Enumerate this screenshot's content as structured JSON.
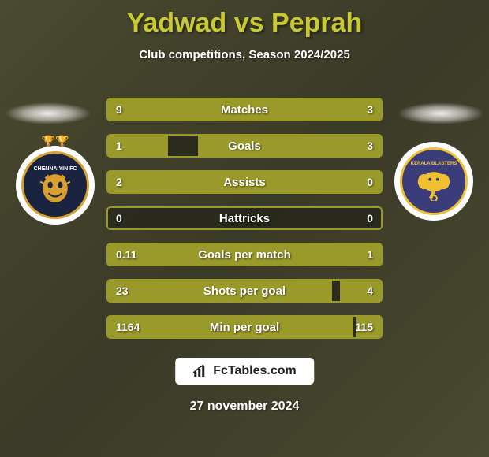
{
  "title": "Yadwad vs Peprah",
  "subtitle": "Club competitions, Season 2024/2025",
  "date": "27 november 2024",
  "footer_site": "FcTables.com",
  "colors": {
    "accent": "#c9c932",
    "bar": "#9a9a2a",
    "bg_dark": "#3a3a28",
    "text": "#ffffff"
  },
  "badges": {
    "left": {
      "name": "CHENNAIYIN FC",
      "bg": "#1a2440"
    },
    "right": {
      "name": "KERALA BLASTERS",
      "bg": "#3a3d7a"
    }
  },
  "stats": [
    {
      "label": "Matches",
      "left_val": "9",
      "right_val": "3",
      "left_pct": 75,
      "right_pct": 25
    },
    {
      "label": "Goals",
      "left_val": "1",
      "right_val": "3",
      "left_pct": 22,
      "right_pct": 67
    },
    {
      "label": "Assists",
      "left_val": "2",
      "right_val": "0",
      "left_pct": 100,
      "right_pct": 0
    },
    {
      "label": "Hattricks",
      "left_val": "0",
      "right_val": "0",
      "left_pct": 0,
      "right_pct": 0
    },
    {
      "label": "Goals per match",
      "left_val": "0.11",
      "right_val": "1",
      "left_pct": 10,
      "right_pct": 90
    },
    {
      "label": "Shots per goal",
      "left_val": "23",
      "right_val": "4",
      "left_pct": 82,
      "right_pct": 15
    },
    {
      "label": "Min per goal",
      "left_val": "1164",
      "right_val": "115",
      "left_pct": 90,
      "right_pct": 9
    }
  ]
}
